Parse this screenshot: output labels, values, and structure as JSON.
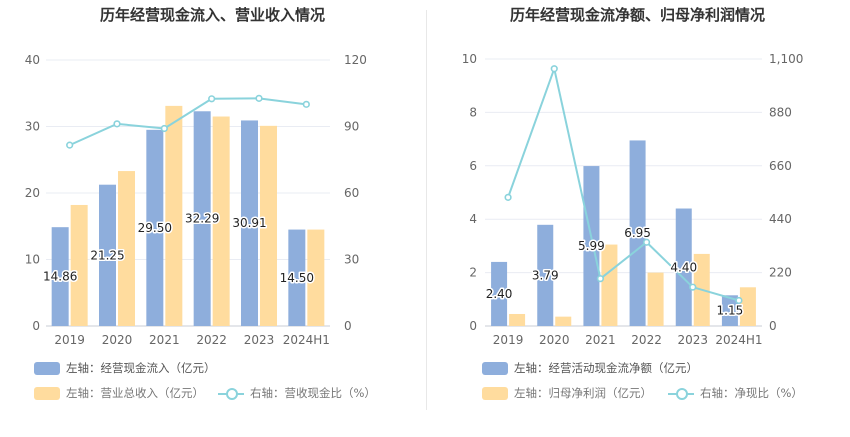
{
  "colors": {
    "bar1": "#8eaedc",
    "bar2": "#ffdc9e",
    "line": "#8ad3dc",
    "grid": "#e9ecf3",
    "axis_text": "#666666"
  },
  "chart_data": [
    {
      "type": "bar",
      "title": "历年经营现金流入、营业收入情况",
      "categories": [
        "2019",
        "2020",
        "2021",
        "2022",
        "2023",
        "2024H1"
      ],
      "left_axis": {
        "ylim": [
          0,
          40
        ],
        "ticks": [
          0,
          10,
          20,
          30,
          40
        ]
      },
      "right_axis": {
        "ylim": [
          0,
          120
        ],
        "ticks": [
          0,
          30,
          60,
          90,
          120
        ]
      },
      "grid": true,
      "series": [
        {
          "name": "左轴：经营现金流入（亿元）",
          "axis": "left",
          "kind": "bar",
          "values": [
            14.86,
            21.25,
            29.5,
            32.29,
            30.91,
            14.5
          ],
          "labels": [
            "14.86",
            "21.25",
            "29.50",
            "32.29",
            "30.91",
            "14.50"
          ]
        },
        {
          "name": "左轴：营业总收入（亿元）",
          "axis": "left",
          "kind": "bar",
          "values": [
            18.2,
            23.3,
            33.1,
            31.5,
            30.1,
            14.5
          ]
        },
        {
          "name": "右轴：营收现金比（%）",
          "axis": "right",
          "kind": "line",
          "values": [
            81.6,
            91.2,
            89.1,
            102.5,
            102.7,
            100
          ]
        }
      ]
    },
    {
      "type": "bar",
      "title": "历年经营现金流净额、归母净利润情况",
      "categories": [
        "2019",
        "2020",
        "2021",
        "2022",
        "2023",
        "2024H1"
      ],
      "left_axis": {
        "ylim": [
          0,
          10
        ],
        "ticks": [
          0,
          2,
          4,
          6,
          8,
          10
        ]
      },
      "right_axis": {
        "ylim": [
          0,
          1100
        ],
        "ticks": [
          0,
          220,
          440,
          660,
          880,
          1100
        ],
        "tick_labels": [
          "0",
          "220",
          "440",
          "660",
          "880",
          "1,100"
        ]
      },
      "grid": true,
      "series": [
        {
          "name": "左轴：经营活动现金流净额（亿元）",
          "axis": "left",
          "kind": "bar",
          "values": [
            2.4,
            3.79,
            5.99,
            6.95,
            4.4,
            1.15
          ],
          "labels": [
            "2.40",
            "3.79",
            "5.99",
            "6.95",
            "4.40",
            "1.15"
          ]
        },
        {
          "name": "左轴：归母净利润（亿元）",
          "axis": "left",
          "kind": "bar",
          "values": [
            0.45,
            0.35,
            3.05,
            2.0,
            2.7,
            1.45
          ]
        },
        {
          "name": "右轴：净现比（%）",
          "axis": "right",
          "kind": "line",
          "values": [
            530,
            1060,
            195,
            345,
            160,
            105
          ]
        }
      ]
    }
  ]
}
